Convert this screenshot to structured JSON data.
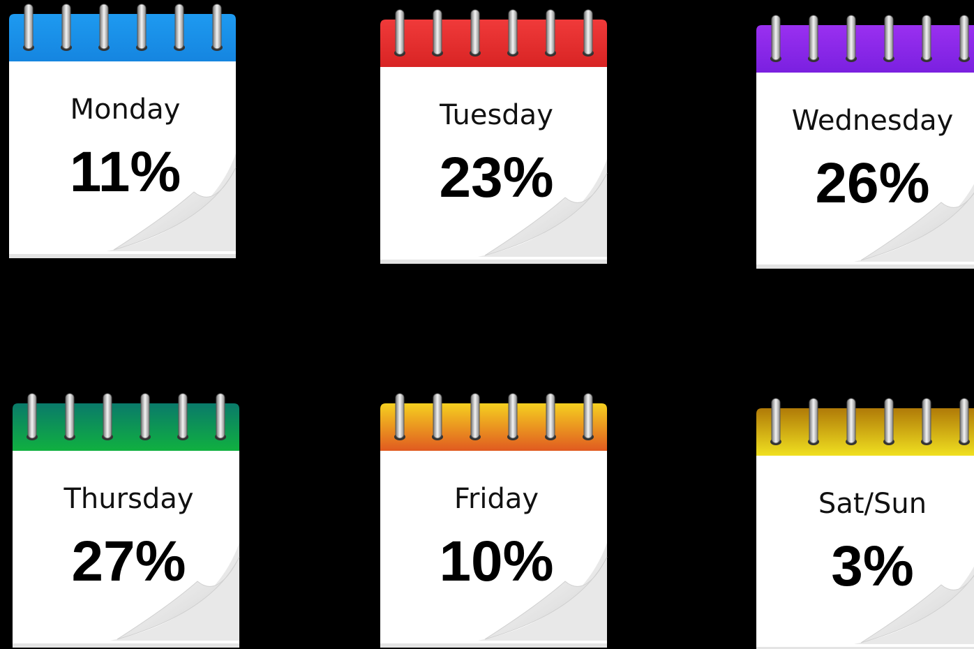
{
  "calendars": [
    {
      "day": "Monday",
      "percent": "11%"
    },
    {
      "day": "Tuesday",
      "percent": "23%"
    },
    {
      "day": "Wednesday",
      "percent": "26%"
    },
    {
      "day": "Thursday",
      "percent": "27%"
    },
    {
      "day": "Friday",
      "percent": "10%"
    },
    {
      "day": "Sat/Sun",
      "percent": "3%"
    }
  ]
}
